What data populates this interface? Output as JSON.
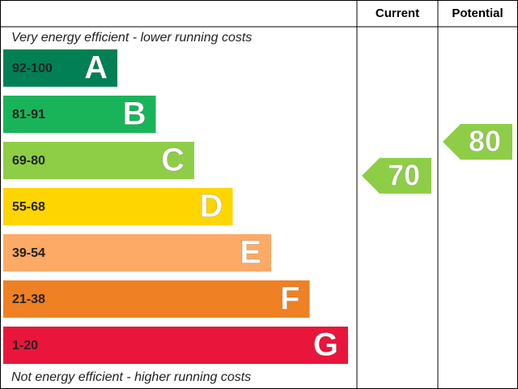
{
  "chart_data": {
    "type": "epc",
    "columns": [
      "Current",
      "Potential"
    ],
    "top_note": "Very energy efficient - lower running costs",
    "bottom_note": "Not energy efficient - higher running costs",
    "bands": [
      {
        "range": "92-100",
        "letter": "A",
        "color": "#008054"
      },
      {
        "range": "81-91",
        "letter": "B",
        "color": "#19b459"
      },
      {
        "range": "69-80",
        "letter": "C",
        "color": "#8dce46"
      },
      {
        "range": "55-68",
        "letter": "D",
        "color": "#ffd500"
      },
      {
        "range": "39-54",
        "letter": "E",
        "color": "#fcaa65"
      },
      {
        "range": "21-38",
        "letter": "F",
        "color": "#ef8023"
      },
      {
        "range": "1-20",
        "letter": "G",
        "color": "#e9153b"
      }
    ],
    "current": 70,
    "potential": 80
  }
}
